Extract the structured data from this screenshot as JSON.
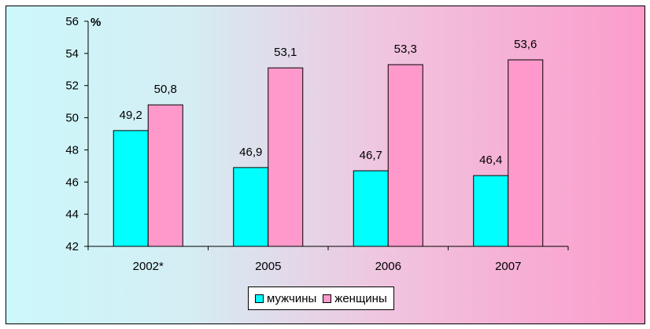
{
  "chart_data": {
    "type": "bar",
    "categories": [
      "2002*",
      "2005",
      "2006",
      "2007"
    ],
    "series": [
      {
        "name": "мужчины",
        "values": [
          49.2,
          46.9,
          46.7,
          46.4
        ],
        "labels": [
          "49,2",
          "46,9",
          "46,7",
          "46,4"
        ],
        "color": "#00ffff"
      },
      {
        "name": "женщины",
        "values": [
          50.8,
          53.1,
          53.3,
          53.6
        ],
        "labels": [
          "50,8",
          "53,1",
          "53,3",
          "53,6"
        ],
        "color": "#ff99cc"
      }
    ],
    "ylabel": "%",
    "ylim": [
      42,
      56
    ],
    "yticks": [
      42,
      44,
      46,
      48,
      50,
      52,
      54,
      56
    ],
    "grid": false,
    "legend_position": "bottom"
  }
}
